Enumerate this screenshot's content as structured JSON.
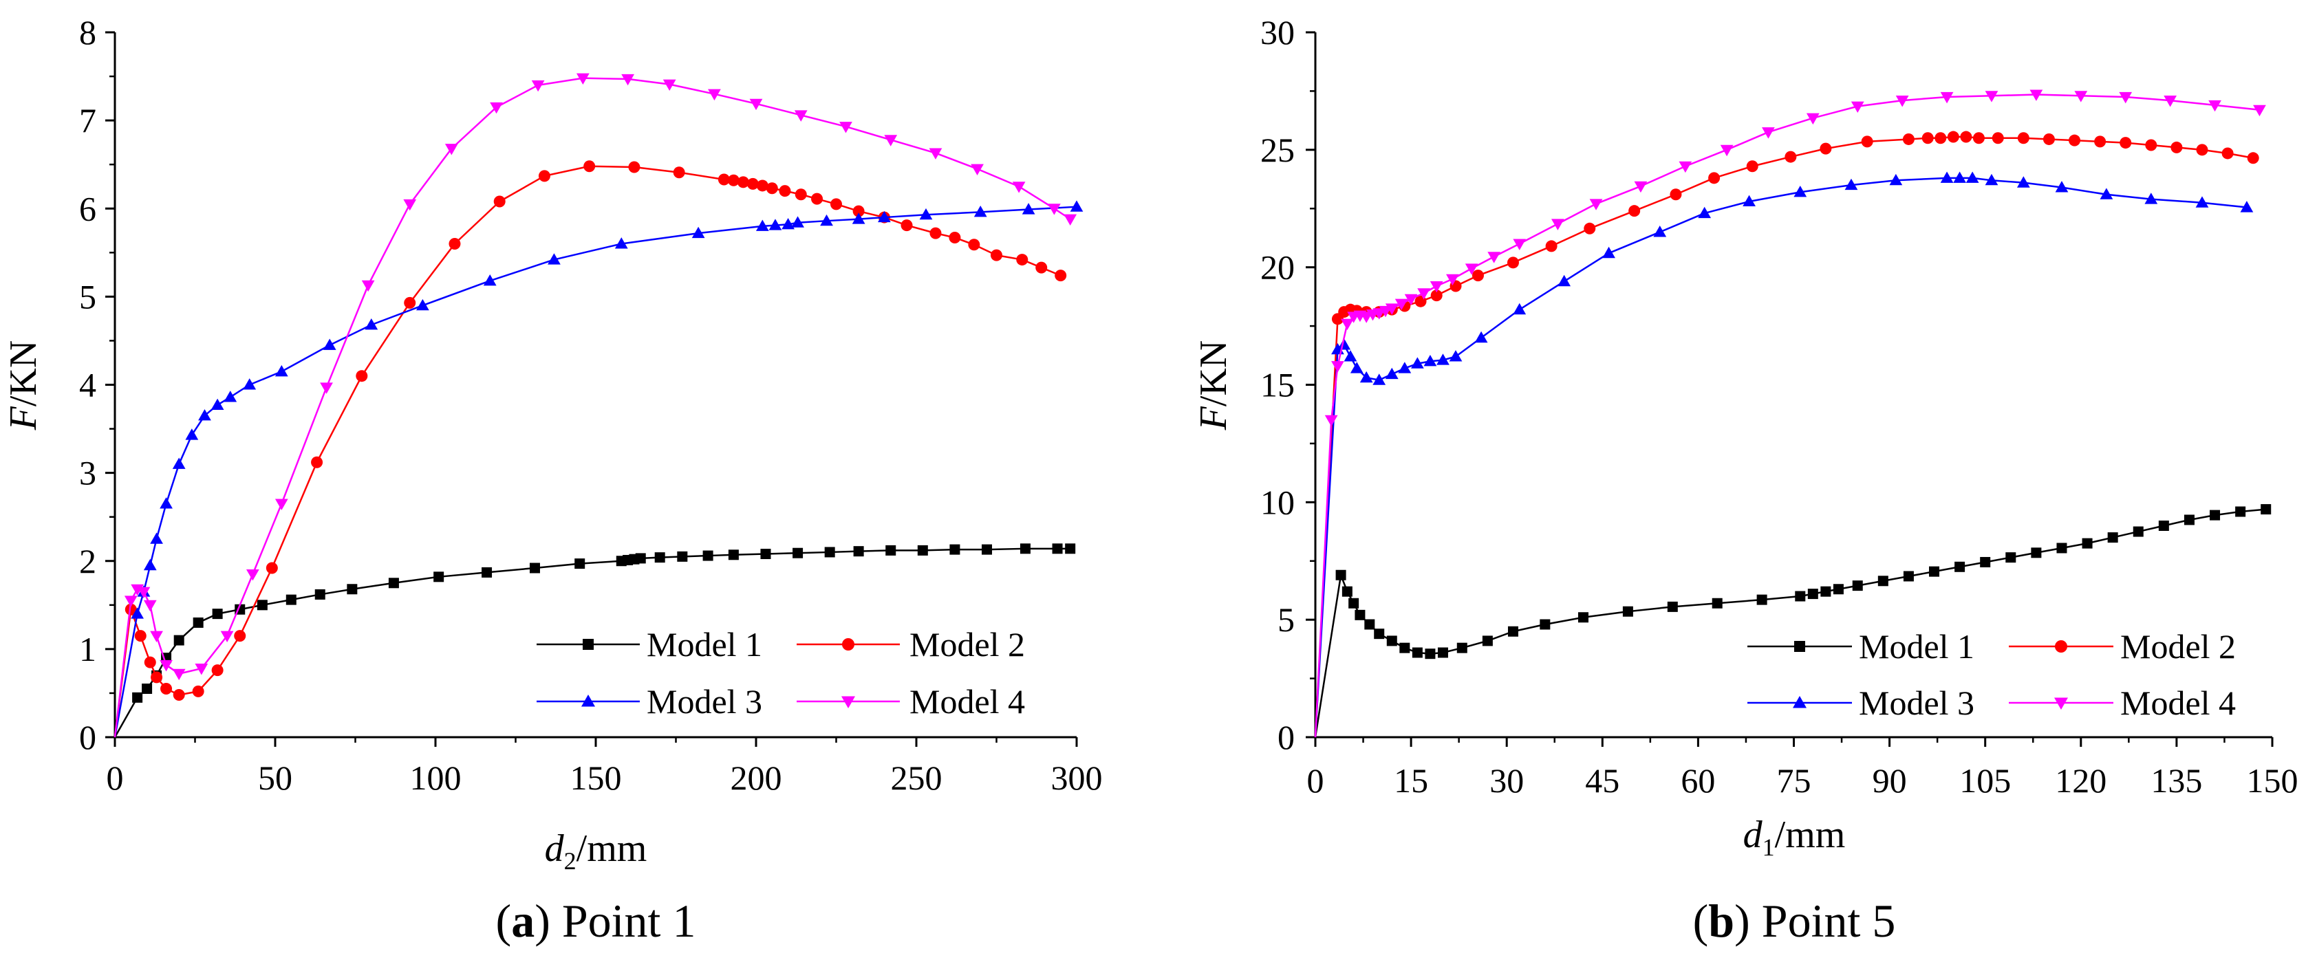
{
  "chart_data": [
    {
      "type": "line",
      "panel": "a",
      "caption": {
        "letter": "a",
        "text": " Point 1"
      },
      "xlabel": {
        "var": "d",
        "sub": "2",
        "unit": "/mm"
      },
      "ylabel": {
        "var": "F",
        "unit": "/KN"
      },
      "xlim": [
        0,
        300
      ],
      "ylim": [
        0,
        8
      ],
      "xticks": [
        0,
        50,
        100,
        150,
        200,
        250,
        300
      ],
      "yticks": [
        0,
        1,
        2,
        3,
        4,
        5,
        6,
        7,
        8
      ],
      "legend": "bottom-right",
      "series": [
        {
          "name": "Model 1",
          "color": "#000000",
          "marker": "square",
          "x": [
            0,
            7,
            10,
            13,
            16,
            20,
            26,
            32,
            39,
            46,
            55,
            64,
            74,
            87,
            101,
            116,
            131,
            145,
            158,
            160,
            162,
            164,
            170,
            177,
            185,
            193,
            203,
            213,
            223,
            232,
            242,
            252,
            262,
            272,
            284,
            294,
            298
          ],
          "y": [
            0,
            0.45,
            0.55,
            0.7,
            0.9,
            1.1,
            1.3,
            1.4,
            1.45,
            1.5,
            1.56,
            1.62,
            1.68,
            1.75,
            1.82,
            1.87,
            1.92,
            1.97,
            2.0,
            2.01,
            2.02,
            2.03,
            2.04,
            2.05,
            2.06,
            2.07,
            2.08,
            2.09,
            2.1,
            2.11,
            2.12,
            2.12,
            2.13,
            2.13,
            2.14,
            2.14,
            2.14
          ]
        },
        {
          "name": "Model 2",
          "color": "#ff0000",
          "marker": "circle",
          "x": [
            0,
            5,
            8,
            11,
            13,
            16,
            20,
            26,
            32,
            39,
            49,
            63,
            77,
            92,
            106,
            120,
            134,
            148,
            162,
            176,
            190,
            193,
            196,
            199,
            202,
            205,
            209,
            214,
            219,
            225,
            232,
            240,
            247,
            256,
            262,
            268,
            275,
            283,
            289,
            295
          ],
          "y": [
            0,
            1.45,
            1.15,
            0.85,
            0.68,
            0.55,
            0.48,
            0.52,
            0.76,
            1.15,
            1.92,
            3.12,
            4.1,
            4.93,
            5.6,
            6.08,
            6.37,
            6.48,
            6.47,
            6.41,
            6.33,
            6.32,
            6.3,
            6.28,
            6.26,
            6.23,
            6.2,
            6.16,
            6.11,
            6.05,
            5.97,
            5.9,
            5.81,
            5.72,
            5.67,
            5.59,
            5.47,
            5.42,
            5.33,
            5.24
          ]
        },
        {
          "name": "Model 3",
          "color": "#0000ff",
          "marker": "triangle-up",
          "x": [
            0,
            7,
            9,
            11,
            13,
            16,
            20,
            24,
            28,
            32,
            36,
            42,
            52,
            67,
            80,
            96,
            117,
            137,
            158,
            182,
            202,
            206,
            210,
            213,
            222,
            232,
            240,
            253,
            270,
            285,
            300
          ],
          "y": [
            0,
            1.4,
            1.65,
            1.95,
            2.25,
            2.65,
            3.1,
            3.43,
            3.65,
            3.77,
            3.86,
            4.0,
            4.15,
            4.45,
            4.68,
            4.9,
            5.18,
            5.42,
            5.6,
            5.72,
            5.8,
            5.81,
            5.82,
            5.84,
            5.86,
            5.88,
            5.9,
            5.93,
            5.96,
            5.99,
            6.02
          ]
        },
        {
          "name": "Model 4",
          "color": "#ff00ff",
          "marker": "triangle-down",
          "x": [
            0,
            5,
            7,
            9,
            11,
            13,
            16,
            20,
            27,
            35,
            43,
            52,
            66,
            79,
            92,
            105,
            119,
            132,
            146,
            160,
            173,
            187,
            200,
            214,
            228,
            242,
            256,
            269,
            282,
            293,
            298
          ],
          "y": [
            0,
            1.55,
            1.68,
            1.65,
            1.5,
            1.15,
            0.82,
            0.72,
            0.78,
            1.15,
            1.85,
            2.65,
            3.97,
            5.13,
            6.05,
            6.68,
            7.15,
            7.4,
            7.48,
            7.47,
            7.41,
            7.3,
            7.19,
            7.06,
            6.93,
            6.78,
            6.63,
            6.45,
            6.25,
            6.0,
            5.88
          ]
        }
      ]
    },
    {
      "type": "line",
      "panel": "b",
      "caption": {
        "letter": "b",
        "text": " Point 5"
      },
      "xlabel": {
        "var": "d",
        "sub": "1",
        "unit": "/mm"
      },
      "ylabel": {
        "var": "F",
        "unit": "/KN"
      },
      "xlim": [
        0,
        150
      ],
      "ylim": [
        0,
        30
      ],
      "xticks": [
        0,
        15,
        30,
        45,
        60,
        75,
        90,
        105,
        120,
        135,
        150
      ],
      "yticks": [
        0,
        5,
        10,
        15,
        20,
        25,
        30
      ],
      "legend": "bottom-right",
      "series": [
        {
          "name": "Model 1",
          "color": "#000000",
          "marker": "square",
          "x": [
            0,
            4,
            5,
            6,
            7,
            8.5,
            10,
            12,
            14,
            16,
            18,
            20,
            23,
            27,
            31,
            36,
            42,
            49,
            56,
            63,
            70,
            76,
            78,
            80,
            82,
            85,
            89,
            93,
            97,
            101,
            105,
            109,
            113,
            117,
            121,
            125,
            129,
            133,
            137,
            141,
            145,
            149
          ],
          "y": [
            0,
            6.9,
            6.2,
            5.7,
            5.2,
            4.8,
            4.4,
            4.1,
            3.8,
            3.6,
            3.55,
            3.6,
            3.8,
            4.1,
            4.5,
            4.8,
            5.1,
            5.35,
            5.55,
            5.7,
            5.85,
            6.0,
            6.1,
            6.2,
            6.3,
            6.45,
            6.65,
            6.85,
            7.05,
            7.25,
            7.45,
            7.65,
            7.85,
            8.05,
            8.25,
            8.5,
            8.75,
            9.0,
            9.25,
            9.45,
            9.6,
            9.7
          ]
        },
        {
          "name": "Model 2",
          "color": "#ff0000",
          "marker": "circle",
          "x": [
            0,
            3.5,
            4.5,
            5.5,
            6.5,
            8,
            10,
            12,
            14,
            16.5,
            19,
            22,
            25.5,
            31,
            37,
            43,
            50,
            56.5,
            62.5,
            68.5,
            74.5,
            80,
            86.5,
            93,
            96,
            98,
            100,
            102,
            104,
            107,
            111,
            115,
            119,
            123,
            127,
            131,
            135,
            139,
            143,
            147
          ],
          "y": [
            0,
            17.8,
            18.1,
            18.2,
            18.15,
            18.1,
            18.1,
            18.2,
            18.35,
            18.55,
            18.8,
            19.2,
            19.65,
            20.2,
            20.9,
            21.65,
            22.4,
            23.1,
            23.8,
            24.3,
            24.7,
            25.05,
            25.35,
            25.45,
            25.5,
            25.5,
            25.55,
            25.55,
            25.5,
            25.5,
            25.5,
            25.45,
            25.4,
            25.35,
            25.3,
            25.2,
            25.1,
            25.0,
            24.85,
            24.65
          ]
        },
        {
          "name": "Model 3",
          "color": "#0000ff",
          "marker": "triangle-up",
          "x": [
            0,
            3.5,
            4.5,
            5.5,
            6.5,
            8,
            10,
            12,
            14,
            16,
            18,
            20,
            22,
            26,
            32,
            39,
            46,
            54,
            61,
            68,
            76,
            84,
            91,
            99,
            101,
            103,
            106,
            111,
            117,
            124,
            131,
            139,
            146
          ],
          "y": [
            0,
            16.5,
            16.7,
            16.2,
            15.7,
            15.3,
            15.2,
            15.45,
            15.7,
            15.9,
            16.0,
            16.05,
            16.2,
            17.0,
            18.2,
            19.4,
            20.6,
            21.5,
            22.3,
            22.8,
            23.2,
            23.5,
            23.7,
            23.8,
            23.8,
            23.8,
            23.7,
            23.6,
            23.4,
            23.1,
            22.9,
            22.75,
            22.55
          ]
        },
        {
          "name": "Model 4",
          "color": "#ff00ff",
          "marker": "triangle-down",
          "x": [
            0,
            2.5,
            3.5,
            5,
            6,
            7,
            8,
            9,
            10,
            11,
            12,
            13.5,
            15,
            17,
            19,
            21.5,
            24.5,
            28,
            32,
            38,
            44,
            51,
            58,
            64.5,
            71,
            78,
            85,
            92,
            99,
            106,
            113,
            120,
            127,
            134,
            141,
            148
          ],
          "y": [
            0,
            13.5,
            15.8,
            17.6,
            17.9,
            17.95,
            17.9,
            18.0,
            18.05,
            18.15,
            18.25,
            18.45,
            18.65,
            18.9,
            19.2,
            19.5,
            19.95,
            20.45,
            21.0,
            21.85,
            22.7,
            23.45,
            24.3,
            25.0,
            25.75,
            26.35,
            26.85,
            27.1,
            27.25,
            27.3,
            27.35,
            27.3,
            27.25,
            27.1,
            26.9,
            26.7
          ]
        }
      ]
    }
  ]
}
